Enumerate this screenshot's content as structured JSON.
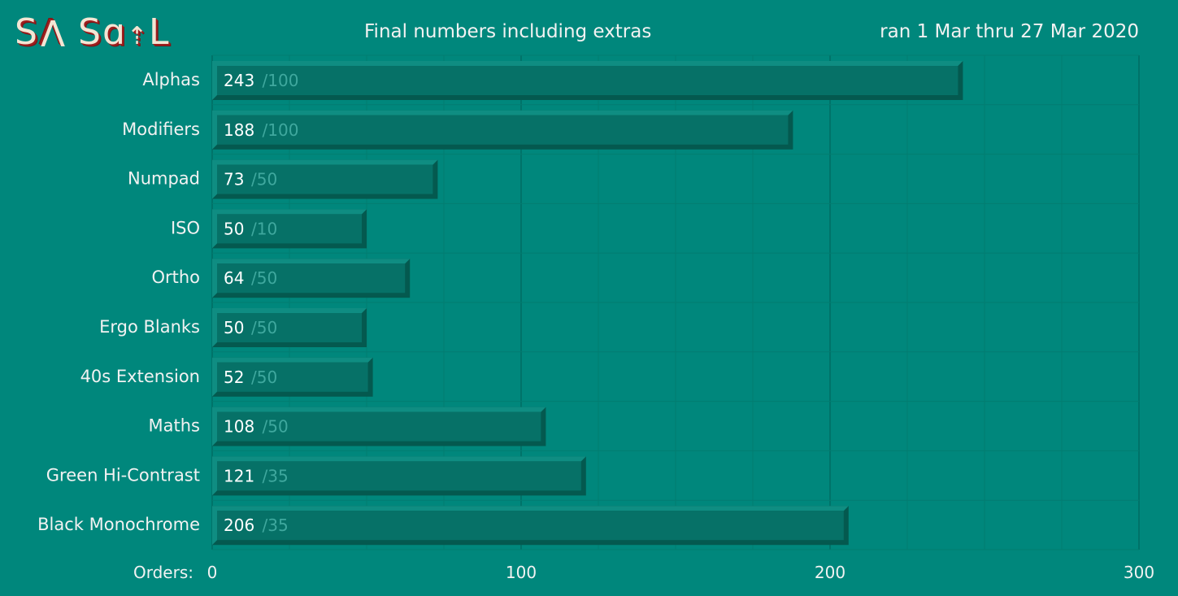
{
  "logo": "SꓯSɑɁL",
  "header": {
    "title": "Final numbers including extras",
    "date_range": "ran 1 Mar thru 27 Mar 2020"
  },
  "colors": {
    "background": "#00877c",
    "bar_fill": "#067167",
    "bar_edge_dark": "#04594f",
    "bar_edge_light": "#0f8d82",
    "grid_major": "#006d63",
    "grid_minor": "#027c71",
    "logo_red": "#9e1e1e",
    "logo_cream": "#f3e6d4"
  },
  "chart_data": {
    "type": "bar",
    "orientation": "horizontal",
    "title": "Final numbers including extras",
    "subtitle": "ran 1 Mar thru 27 Mar 2020",
    "xlabel": "Orders:",
    "ylabel": "",
    "xlim": [
      0,
      300
    ],
    "xticks": [
      "0",
      "100",
      "200",
      "300"
    ],
    "grid": true,
    "categories": [
      "Alphas",
      "Modifiers",
      "Numpad",
      "ISO",
      "Ortho",
      "Ergo Blanks",
      "40s Extension",
      "Maths",
      "Green Hi-Contrast",
      "Black Monochrome"
    ],
    "values": [
      243,
      188,
      73,
      50,
      64,
      50,
      52,
      108,
      121,
      206
    ],
    "targets": [
      "/100",
      "/100",
      "/50",
      "/10",
      "/50",
      "/50",
      "/50",
      "/50",
      "/35",
      "/35"
    ]
  }
}
